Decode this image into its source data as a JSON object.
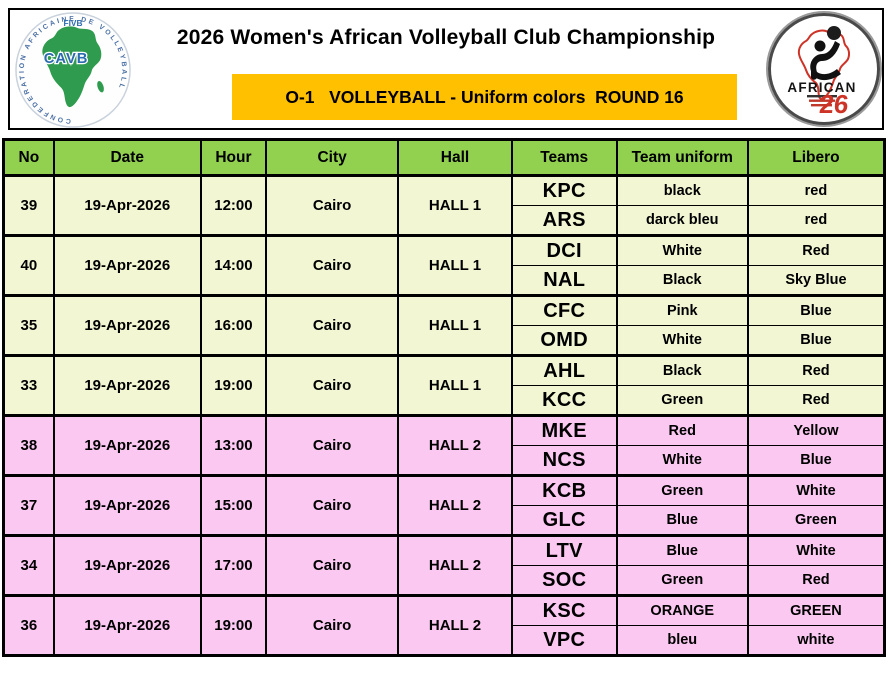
{
  "header": {
    "title": "2026 Women's African Volleyball Club Championship",
    "banner_text": "O-1   VOLLEYBALL - Uniform colors  ROUND 16",
    "banner_color": "#FFC000",
    "left_logo": {
      "top_text": "FIVB",
      "center_text": "CAVB",
      "ring_text": "CONFEDERATION  AFRICAINE  DE  VOLLEYBALL"
    },
    "right_logo": {
      "title": "AFRICAN",
      "number": "26"
    }
  },
  "colors": {
    "header_row_green": "#92D050",
    "hall1_row": "#F2F6D3",
    "hall2_row": "#FBC8F2",
    "border": "#000000",
    "cavb_green": "#2E9B4E",
    "cavb_blue": "#2B6CB0",
    "african_red": "#CE3327"
  },
  "table": {
    "columns": [
      "No",
      "Date",
      "Hour",
      "City",
      "Hall",
      "Teams",
      "Team uniform",
      "Libero"
    ],
    "blocks": [
      {
        "no": "39",
        "date": "19-Apr-2026",
        "hour": "12:00",
        "city": "Cairo",
        "hall": "HALL 1",
        "teams": [
          {
            "team": "KPC",
            "uniform": "black",
            "libero": "red"
          },
          {
            "team": "ARS",
            "uniform": "darck bleu",
            "libero": "red"
          }
        ]
      },
      {
        "no": "40",
        "date": "19-Apr-2026",
        "hour": "14:00",
        "city": "Cairo",
        "hall": "HALL 1",
        "teams": [
          {
            "team": "DCI",
            "uniform": "White",
            "libero": "Red"
          },
          {
            "team": "NAL",
            "uniform": "Black",
            "libero": "Sky Blue"
          }
        ]
      },
      {
        "no": "35",
        "date": "19-Apr-2026",
        "hour": "16:00",
        "city": "Cairo",
        "hall": "HALL 1",
        "teams": [
          {
            "team": "CFC",
            "uniform": "Pink",
            "libero": "Blue"
          },
          {
            "team": "OMD",
            "uniform": "White",
            "libero": "Blue"
          }
        ]
      },
      {
        "no": "33",
        "date": "19-Apr-2026",
        "hour": "19:00",
        "city": "Cairo",
        "hall": "HALL 1",
        "teams": [
          {
            "team": "AHL",
            "uniform": "Black",
            "libero": "Red"
          },
          {
            "team": "KCC",
            "uniform": "Green",
            "libero": "Red"
          }
        ]
      },
      {
        "no": "38",
        "date": "19-Apr-2026",
        "hour": "13:00",
        "city": "Cairo",
        "hall": "HALL 2",
        "teams": [
          {
            "team": "MKE",
            "uniform": "Red",
            "libero": "Yellow"
          },
          {
            "team": "NCS",
            "uniform": "White",
            "libero": "Blue"
          }
        ]
      },
      {
        "no": "37",
        "date": "19-Apr-2026",
        "hour": "15:00",
        "city": "Cairo",
        "hall": "HALL 2",
        "teams": [
          {
            "team": "KCB",
            "uniform": "Green",
            "libero": "White"
          },
          {
            "team": "GLC",
            "uniform": "Blue",
            "libero": "Green"
          }
        ]
      },
      {
        "no": "34",
        "date": "19-Apr-2026",
        "hour": "17:00",
        "city": "Cairo",
        "hall": "HALL 2",
        "teams": [
          {
            "team": "LTV",
            "uniform": "Blue",
            "libero": "White"
          },
          {
            "team": "SOC",
            "uniform": "Green",
            "libero": "Red"
          }
        ]
      },
      {
        "no": "36",
        "date": "19-Apr-2026",
        "hour": "19:00",
        "city": "Cairo",
        "hall": "HALL 2",
        "teams": [
          {
            "team": "KSC",
            "uniform": "ORANGE",
            "libero": "GREEN"
          },
          {
            "team": "VPC",
            "uniform": "bleu",
            "libero": "white"
          }
        ]
      }
    ]
  }
}
